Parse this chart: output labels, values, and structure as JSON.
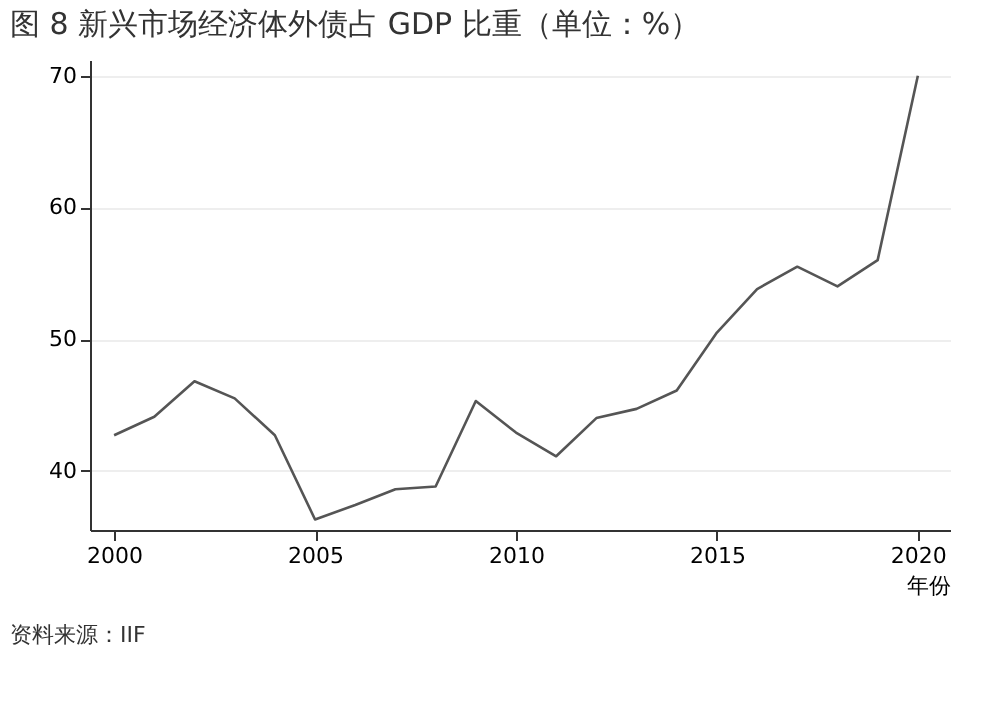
{
  "chart_data": {
    "type": "line",
    "title": "图 8   新兴市场经济体外债占 GDP 比重（单位：%）",
    "xlabel": "年份",
    "x": [
      2000,
      2001,
      2002,
      2003,
      2004,
      2005,
      2006,
      2007,
      2008,
      2009,
      2010,
      2011,
      2012,
      2013,
      2014,
      2015,
      2016,
      2017,
      2018,
      2019,
      2020
    ],
    "series": [
      {
        "color": "#555555",
        "values": [
          42.7,
          44.1,
          46.8,
          45.5,
          42.7,
          36.3,
          37.4,
          38.6,
          38.8,
          45.3,
          42.9,
          41.1,
          44.0,
          44.7,
          46.1,
          50.5,
          53.8,
          55.5,
          54.0,
          56.0,
          70.0
        ]
      }
    ],
    "xlim": [
      1999.4,
      2020.8
    ],
    "xticks": [
      2000,
      2005,
      2010,
      2015,
      2020
    ],
    "ylim": [
      35.5,
      71.2
    ],
    "yticks": [
      40,
      50,
      60,
      70
    ],
    "grid": "y",
    "line_style": "solid",
    "marker": "none",
    "annotations": [
      "资料来源：IIF"
    ]
  }
}
